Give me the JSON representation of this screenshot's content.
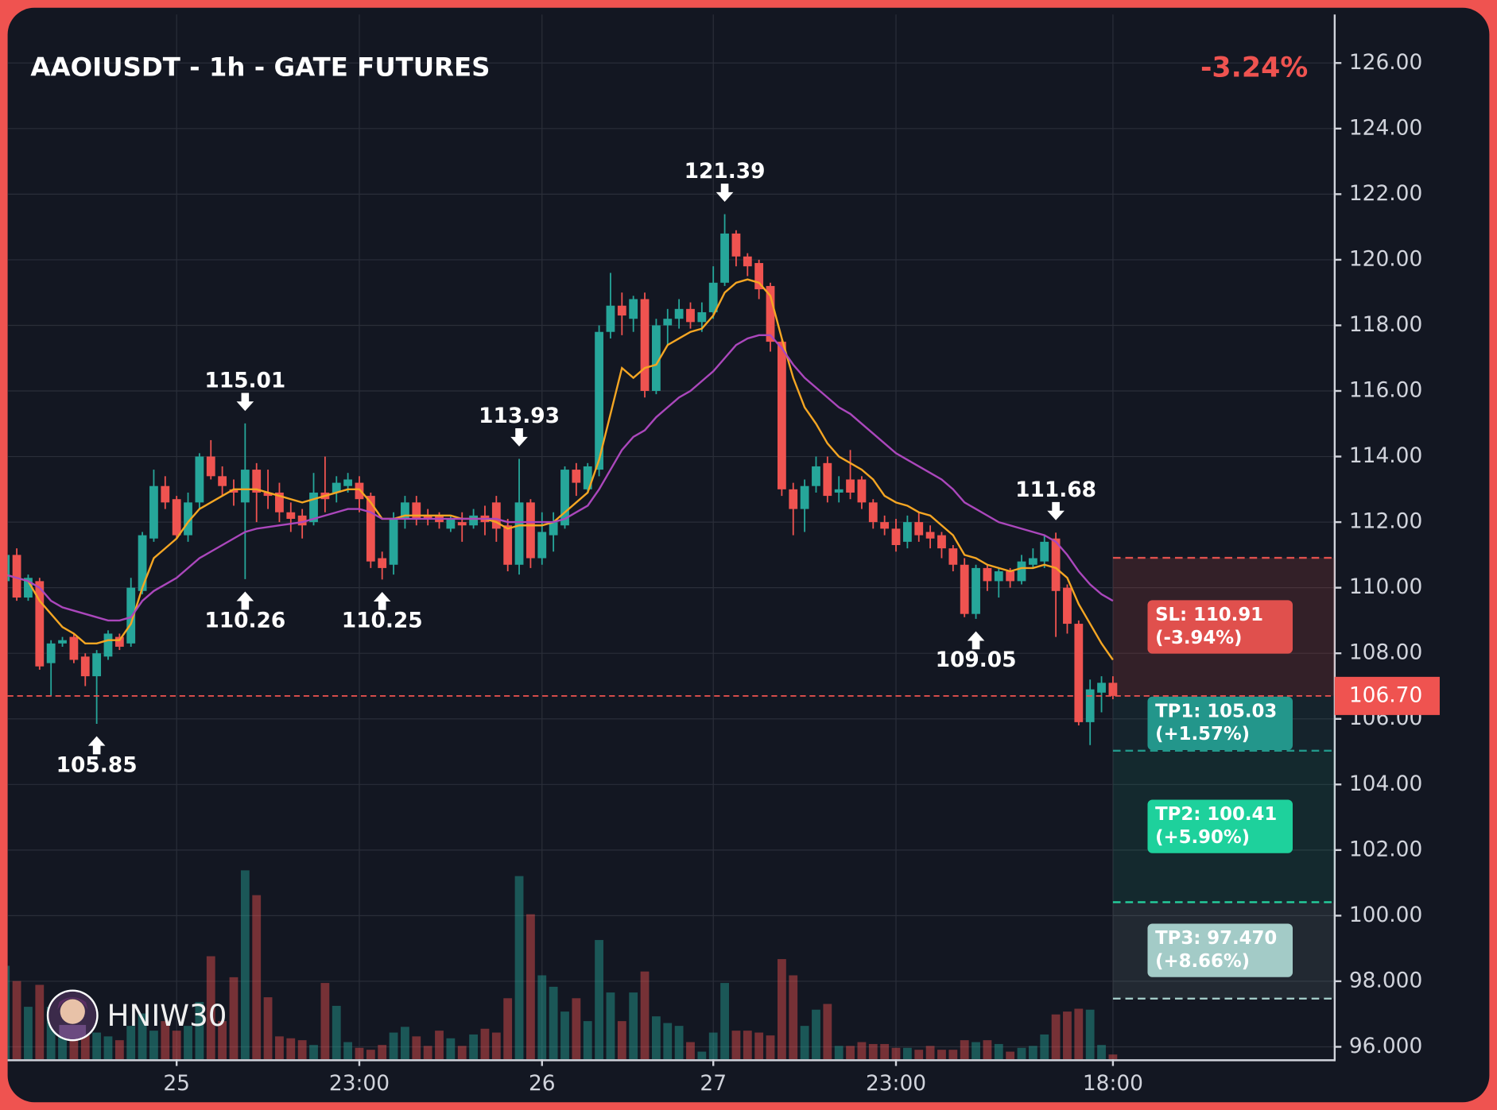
{
  "chart_data": {
    "type": "candlestick",
    "title": "AAOIUSDT - 1h - GATE FUTURES",
    "change": "-3.24%",
    "watermark": "HNIW30",
    "categories": [
      null,
      null,
      null,
      null,
      null,
      null,
      null,
      null,
      null,
      null,
      null,
      null,
      null,
      null,
      null,
      "25",
      null,
      null,
      null,
      null,
      null,
      null,
      null,
      null,
      null,
      null,
      null,
      null,
      null,
      null,
      null,
      "23:00",
      null,
      null,
      null,
      null,
      null,
      null,
      null,
      null,
      null,
      null,
      null,
      null,
      null,
      null,
      null,
      "26",
      null,
      null,
      null,
      null,
      null,
      null,
      null,
      null,
      null,
      null,
      null,
      null,
      null,
      null,
      "27",
      null,
      null,
      null,
      null,
      null,
      null,
      null,
      null,
      null,
      null,
      null,
      null,
      null,
      null,
      null,
      "23:00",
      null,
      null,
      null,
      null,
      null,
      null,
      null,
      null,
      null,
      null,
      null,
      null,
      null,
      null,
      null,
      null,
      null,
      null,
      "18:00"
    ],
    "open": [
      110.2,
      111.0,
      109.7,
      110.2,
      107.7,
      108.3,
      108.5,
      107.9,
      107.3,
      107.9,
      108.5,
      108.3,
      109.9,
      111.5,
      113.1,
      112.7,
      111.6,
      112.6,
      114.0,
      113.4,
      113.0,
      112.6,
      113.6,
      112.9,
      112.9,
      112.3,
      112.2,
      112.0,
      112.9,
      112.9,
      113.1,
      113.2,
      112.8,
      110.9,
      110.7,
      112.1,
      112.6,
      112.2,
      112.2,
      111.8,
      112.0,
      111.9,
      112.2,
      112.6,
      111.9,
      110.7,
      112.6,
      110.9,
      111.6,
      111.9,
      113.6,
      113.0,
      113.6,
      117.8,
      118.6,
      118.2,
      118.8,
      116.0,
      118.0,
      118.2,
      118.5,
      118.1,
      118.4,
      119.3,
      120.8,
      120.1,
      119.9,
      119.2,
      117.5,
      113.0,
      112.4,
      113.1,
      113.8,
      112.9,
      113.3,
      113.3,
      112.6,
      112.0,
      111.8,
      111.4,
      112.0,
      111.7,
      111.6,
      111.2,
      110.7,
      109.2,
      110.6,
      110.2,
      110.5,
      110.2,
      110.7,
      110.8,
      111.5,
      110.0,
      108.9,
      105.9,
      106.8,
      107.1
    ],
    "high": [
      112.5,
      111.2,
      110.4,
      110.3,
      108.4,
      108.5,
      108.6,
      108.0,
      108.1,
      108.7,
      108.6,
      110.3,
      111.7,
      113.6,
      113.4,
      112.8,
      112.9,
      114.1,
      114.5,
      113.7,
      113.3,
      115.01,
      113.8,
      113.6,
      113.2,
      112.6,
      112.4,
      113.5,
      114.0,
      113.4,
      113.5,
      113.4,
      112.9,
      111.1,
      112.3,
      112.8,
      112.8,
      112.4,
      112.3,
      112.2,
      112.3,
      112.4,
      112.5,
      112.8,
      112.1,
      113.93,
      112.7,
      112.3,
      112.3,
      113.7,
      113.8,
      113.8,
      118.0,
      119.6,
      119.0,
      118.9,
      119.0,
      118.2,
      118.5,
      118.8,
      118.7,
      118.7,
      119.8,
      121.39,
      120.9,
      120.2,
      120.0,
      119.3,
      117.6,
      113.2,
      113.3,
      114.0,
      114.0,
      113.4,
      114.2,
      113.4,
      112.7,
      112.2,
      112.1,
      112.2,
      112.3,
      111.9,
      111.7,
      111.3,
      110.9,
      110.7,
      110.7,
      110.6,
      110.6,
      111.0,
      111.2,
      111.6,
      111.68,
      110.1,
      109.0,
      107.2,
      107.3,
      107.3
    ],
    "low": [
      109.8,
      109.6,
      109.6,
      107.5,
      106.7,
      108.2,
      107.7,
      107.0,
      105.85,
      107.8,
      108.1,
      108.2,
      109.8,
      111.4,
      112.4,
      111.5,
      111.4,
      112.4,
      113.3,
      112.8,
      112.5,
      110.26,
      112.0,
      112.4,
      112.0,
      111.7,
      111.5,
      111.9,
      112.3,
      112.6,
      112.9,
      112.3,
      110.6,
      110.25,
      110.4,
      111.8,
      111.9,
      111.9,
      111.8,
      111.7,
      111.4,
      111.8,
      111.6,
      111.4,
      110.5,
      110.4,
      110.6,
      110.7,
      111.1,
      111.8,
      112.8,
      112.9,
      113.4,
      117.6,
      117.7,
      117.8,
      115.8,
      115.9,
      117.4,
      117.9,
      117.9,
      117.8,
      118.2,
      119.2,
      119.8,
      119.5,
      118.8,
      117.2,
      112.8,
      111.6,
      111.7,
      112.9,
      112.6,
      112.6,
      112.7,
      112.4,
      111.8,
      111.6,
      111.1,
      111.2,
      111.4,
      111.2,
      110.9,
      110.5,
      109.1,
      109.05,
      109.9,
      109.7,
      110.0,
      110.1,
      110.6,
      110.6,
      108.5,
      108.6,
      105.8,
      105.2,
      106.2,
      106.6
    ],
    "close": [
      111.0,
      109.7,
      110.3,
      107.6,
      108.3,
      108.4,
      107.8,
      107.3,
      108.0,
      108.6,
      108.2,
      110.0,
      111.6,
      113.1,
      112.6,
      111.6,
      112.6,
      114.0,
      113.4,
      113.1,
      112.9,
      113.6,
      112.9,
      112.8,
      112.3,
      112.1,
      111.9,
      112.9,
      112.7,
      113.2,
      113.3,
      112.7,
      110.8,
      110.6,
      112.1,
      112.6,
      112.1,
      112.1,
      112.0,
      112.1,
      111.9,
      112.2,
      112.0,
      111.8,
      110.7,
      112.6,
      110.9,
      111.7,
      112.0,
      113.6,
      113.2,
      113.7,
      117.8,
      118.6,
      118.3,
      118.8,
      116.0,
      118.0,
      118.2,
      118.5,
      118.1,
      118.4,
      119.3,
      120.8,
      120.1,
      119.8,
      119.1,
      117.5,
      113.0,
      112.4,
      113.1,
      113.7,
      112.8,
      113.0,
      112.9,
      112.6,
      112.0,
      111.8,
      111.3,
      112.0,
      111.6,
      111.5,
      111.2,
      110.7,
      109.2,
      110.6,
      110.2,
      110.5,
      110.2,
      110.8,
      110.9,
      111.4,
      109.9,
      108.9,
      105.9,
      106.9,
      107.1,
      106.7
    ],
    "volume": [
      98,
      82,
      55,
      78,
      55,
      44,
      35,
      40,
      28,
      24,
      20,
      35,
      48,
      30,
      40,
      30,
      35,
      60,
      108,
      40,
      86,
      198,
      172,
      65,
      24,
      22,
      20,
      15,
      80,
      56,
      18,
      12,
      10,
      15,
      28,
      34,
      24,
      14,
      30,
      22,
      14,
      26,
      32,
      28,
      64,
      192,
      152,
      88,
      76,
      50,
      64,
      40,
      125,
      70,
      40,
      70,
      92,
      45,
      38,
      35,
      18,
      8,
      28,
      80,
      30,
      30,
      28,
      25,
      105,
      88,
      35,
      52,
      58,
      14,
      14,
      18,
      16,
      16,
      12,
      12,
      10,
      14,
      10,
      10,
      20,
      18,
      20,
      16,
      8,
      12,
      14,
      26,
      47,
      50,
      53,
      52,
      15,
      5
    ],
    "up_color": "#26a69a",
    "down_color": "#ef5350",
    "lines": [
      {
        "color": "#f5a623",
        "values": [
          110.4,
          110.3,
          110.2,
          109.6,
          109.2,
          108.8,
          108.6,
          108.3,
          108.3,
          108.4,
          108.4,
          108.9,
          110.0,
          110.9,
          111.2,
          111.5,
          112.0,
          112.4,
          112.6,
          112.8,
          113.0,
          113.0,
          113.0,
          112.9,
          112.8,
          112.7,
          112.6,
          112.7,
          112.8,
          112.9,
          113.0,
          113.0,
          112.6,
          112.1,
          112.1,
          112.2,
          112.2,
          112.2,
          112.2,
          112.2,
          112.1,
          112.1,
          112.1,
          112.0,
          111.8,
          111.9,
          111.9,
          111.9,
          112.0,
          112.3,
          112.6,
          112.9,
          113.9,
          115.3,
          116.7,
          116.4,
          116.7,
          116.8,
          117.4,
          117.6,
          117.8,
          117.9,
          118.3,
          119.0,
          119.3,
          119.4,
          119.3,
          118.9,
          117.6,
          116.4,
          115.5,
          115.0,
          114.4,
          114.0,
          113.8,
          113.6,
          113.3,
          112.8,
          112.6,
          112.5,
          112.3,
          112.2,
          111.9,
          111.6,
          111.0,
          110.9,
          110.7,
          110.6,
          110.5,
          110.6,
          110.6,
          110.7,
          110.6,
          110.3,
          109.5,
          108.9,
          108.3,
          107.8
        ]
      },
      {
        "color": "#ab47bc",
        "values": [
          110.4,
          110.3,
          110.2,
          110.0,
          109.6,
          109.4,
          109.3,
          109.2,
          109.1,
          109.0,
          109.0,
          109.1,
          109.6,
          109.9,
          110.1,
          110.3,
          110.6,
          110.9,
          111.1,
          111.3,
          111.5,
          111.7,
          111.8,
          111.85,
          111.9,
          111.95,
          112.0,
          112.1,
          112.2,
          112.3,
          112.4,
          112.4,
          112.3,
          112.1,
          112.1,
          112.1,
          112.1,
          112.1,
          112.1,
          112.1,
          112.1,
          112.1,
          112.1,
          112.1,
          112.0,
          112.0,
          112.0,
          112.0,
          112.0,
          112.1,
          112.3,
          112.5,
          113.0,
          113.6,
          114.2,
          114.6,
          114.8,
          115.2,
          115.5,
          115.8,
          116.0,
          116.3,
          116.6,
          117.0,
          117.4,
          117.6,
          117.7,
          117.7,
          117.3,
          116.8,
          116.4,
          116.1,
          115.8,
          115.5,
          115.3,
          115.0,
          114.7,
          114.4,
          114.1,
          113.9,
          113.7,
          113.5,
          113.3,
          113.0,
          112.6,
          112.4,
          112.2,
          112.0,
          111.9,
          111.8,
          111.7,
          111.6,
          111.4,
          111.0,
          110.5,
          110.1,
          109.8,
          109.6
        ]
      }
    ],
    "pivot_highs": [
      21,
      45,
      63,
      92
    ],
    "pivot_lows": [
      8,
      21,
      33,
      85
    ],
    "last_price": {
      "value": 106.7,
      "label": "106.70"
    },
    "levels": [
      {
        "label": "SL: 110.91",
        "change": "(-3.94%)",
        "value": 110.91,
        "color": "#e0504d"
      },
      {
        "label": "TP1: 105.03",
        "change": "(+1.57%)",
        "value": 105.03,
        "color": "#23968b"
      },
      {
        "label": "TP2: 100.41",
        "change": "(+5.90%)",
        "value": 100.41,
        "color": "#1ed19c"
      },
      {
        "label": "TP3: 97.470",
        "change": "(+8.66%)",
        "value": 97.47,
        "color": "#a3cbc7"
      }
    ],
    "ylim": [
      95.62,
      127.48
    ],
    "yticks": [
      {
        "value": 96,
        "label": "96.000"
      },
      {
        "value": 98,
        "label": "98.000"
      },
      {
        "value": 100,
        "label": "100.00"
      },
      {
        "value": 102,
        "label": "102.00"
      },
      {
        "value": 104,
        "label": "104.00"
      },
      {
        "value": 106,
        "label": "106.00"
      },
      {
        "value": 108,
        "label": "108.00"
      },
      {
        "value": 110,
        "label": "110.00"
      },
      {
        "value": 112,
        "label": "112.00"
      },
      {
        "value": 114,
        "label": "114.00"
      },
      {
        "value": 116,
        "label": "116.00"
      },
      {
        "value": 118,
        "label": "118.00"
      },
      {
        "value": 120,
        "label": "120.00"
      },
      {
        "value": 122,
        "label": "122.00"
      },
      {
        "value": 124,
        "label": "124.00"
      },
      {
        "value": 126,
        "label": "126.00"
      }
    ],
    "grid": true
  }
}
